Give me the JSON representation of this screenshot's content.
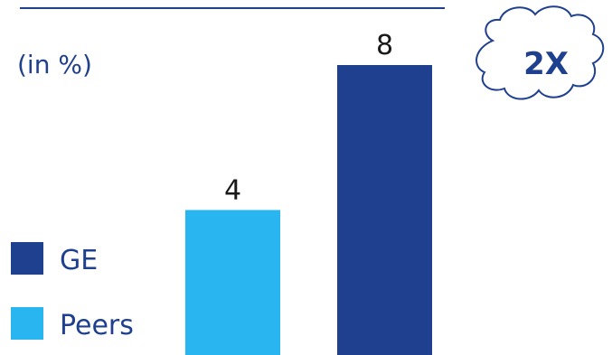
{
  "chart_data": {
    "type": "bar",
    "ylabel": "(in %)",
    "categories": [
      "Peers",
      "GE"
    ],
    "values": [
      4,
      8
    ],
    "data_labels": [
      "4",
      "8"
    ],
    "ylim": [
      0,
      8
    ],
    "grid": false,
    "legend_placement": "bottom-left",
    "legend": [
      {
        "label": "GE",
        "color": "#1f3f8f"
      },
      {
        "label": "Peers",
        "color": "#29b6f0"
      }
    ],
    "colors": {
      "GE": "#1f3f8f",
      "Peers": "#29b6f0",
      "text": "#1f3f8f",
      "top_rule": "#1f3f8f"
    },
    "annotation": {
      "text": "2X",
      "shape": "cloud"
    }
  }
}
